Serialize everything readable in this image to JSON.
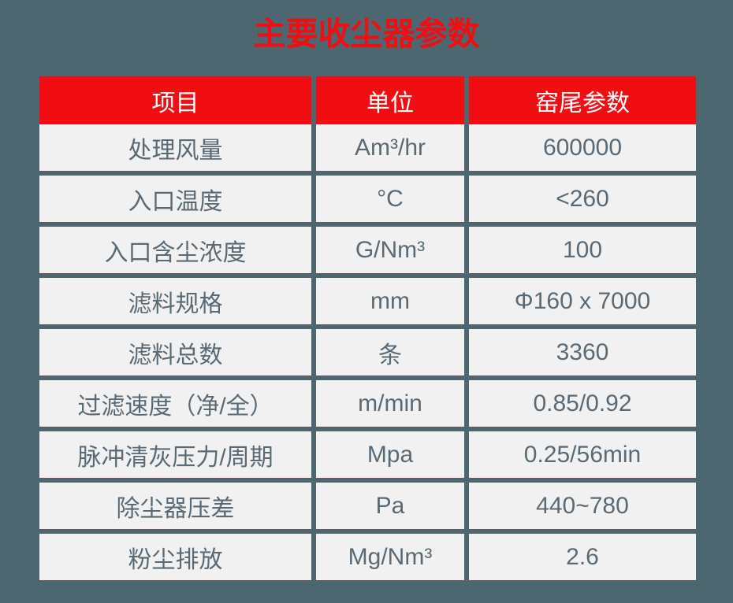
{
  "title": {
    "text": "主要收尘器参数"
  },
  "colors": {
    "background": "#4C6770",
    "accent_red": "#F20D13",
    "cell_background": "#F1F1F2",
    "cell_text": "#5A6A75",
    "header_text": "#FFFFFF"
  },
  "chart_data": {
    "type": "table",
    "title": "主要收尘器参数",
    "columns": [
      "项目",
      "单位",
      "窑尾参数"
    ],
    "rows": [
      [
        "处理风量",
        "Am³/hr",
        "600000"
      ],
      [
        "入口温度",
        "°C",
        "<260"
      ],
      [
        "入口含尘浓度",
        "G/Nm³",
        "100"
      ],
      [
        "滤料规格",
        "mm",
        "Φ160 x 7000"
      ],
      [
        "滤料总数",
        "条",
        "3360"
      ],
      [
        "过滤速度（净/全）",
        "m/min",
        "0.85/0.92"
      ],
      [
        "脉冲清灰压力/周期",
        "Mpa",
        "0.25/56min"
      ],
      [
        "除尘器压差",
        "Pa",
        "440~780"
      ],
      [
        "粉尘排放",
        "Mg/Nm³",
        "2.6"
      ]
    ]
  }
}
